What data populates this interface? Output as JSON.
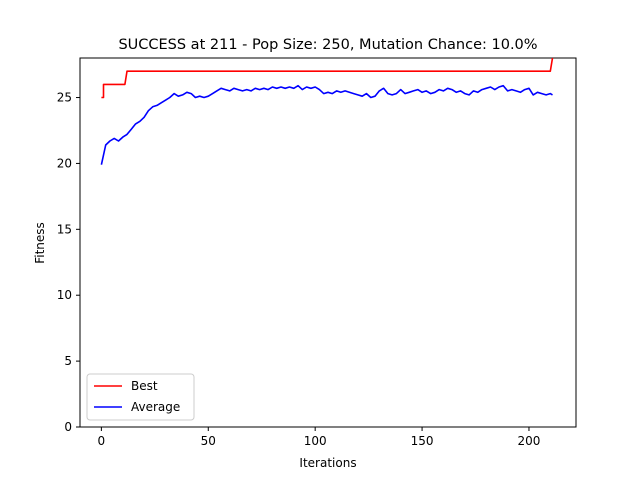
{
  "chart_data": {
    "type": "line",
    "title": "SUCCESS at 211 - Pop Size: 250, Mutation Chance: 10.0%",
    "xlabel": "Iterations",
    "ylabel": "Fitness",
    "xlim": [
      -10,
      222
    ],
    "ylim": [
      0,
      28
    ],
    "xticks": [
      0,
      50,
      100,
      150,
      200
    ],
    "yticks": [
      0,
      5,
      10,
      15,
      20,
      25
    ],
    "legend_position": "lower-left",
    "series": [
      {
        "name": "Best",
        "color": "#ff0000",
        "x": [
          0,
          1,
          1,
          11,
          12,
          209,
          210,
          211
        ],
        "y": [
          25,
          25,
          26,
          26,
          27,
          27,
          27,
          28
        ]
      },
      {
        "name": "Average",
        "color": "#0000ff",
        "x": [
          0,
          2,
          4,
          6,
          8,
          10,
          12,
          14,
          16,
          18,
          20,
          22,
          24,
          26,
          28,
          30,
          32,
          34,
          36,
          38,
          40,
          42,
          44,
          46,
          48,
          50,
          52,
          54,
          56,
          58,
          60,
          62,
          64,
          66,
          68,
          70,
          72,
          74,
          76,
          78,
          80,
          82,
          84,
          86,
          88,
          90,
          92,
          94,
          96,
          98,
          100,
          102,
          104,
          106,
          108,
          110,
          112,
          114,
          116,
          118,
          120,
          122,
          124,
          126,
          128,
          130,
          132,
          134,
          136,
          138,
          140,
          142,
          144,
          146,
          148,
          150,
          152,
          154,
          156,
          158,
          160,
          162,
          164,
          166,
          168,
          170,
          172,
          174,
          176,
          178,
          180,
          182,
          184,
          186,
          188,
          190,
          192,
          194,
          196,
          198,
          200,
          202,
          204,
          206,
          208,
          210,
          211
        ],
        "y": [
          19.9,
          21.4,
          21.7,
          21.9,
          21.7,
          22.0,
          22.2,
          22.6,
          23.0,
          23.2,
          23.5,
          24.0,
          24.3,
          24.4,
          24.6,
          24.8,
          25.0,
          25.3,
          25.1,
          25.2,
          25.4,
          25.3,
          25.0,
          25.1,
          25.0,
          25.1,
          25.3,
          25.5,
          25.7,
          25.6,
          25.5,
          25.7,
          25.6,
          25.5,
          25.6,
          25.5,
          25.7,
          25.6,
          25.7,
          25.6,
          25.8,
          25.7,
          25.8,
          25.7,
          25.8,
          25.7,
          25.9,
          25.6,
          25.8,
          25.7,
          25.8,
          25.6,
          25.3,
          25.4,
          25.3,
          25.5,
          25.4,
          25.5,
          25.4,
          25.3,
          25.2,
          25.1,
          25.3,
          25.0,
          25.1,
          25.5,
          25.7,
          25.3,
          25.2,
          25.3,
          25.6,
          25.3,
          25.4,
          25.5,
          25.6,
          25.4,
          25.5,
          25.3,
          25.4,
          25.6,
          25.5,
          25.7,
          25.6,
          25.4,
          25.5,
          25.3,
          25.2,
          25.5,
          25.4,
          25.6,
          25.7,
          25.8,
          25.6,
          25.8,
          25.9,
          25.5,
          25.6,
          25.5,
          25.4,
          25.6,
          25.7,
          25.2,
          25.4,
          25.3,
          25.2,
          25.3,
          25.2
        ]
      }
    ]
  }
}
